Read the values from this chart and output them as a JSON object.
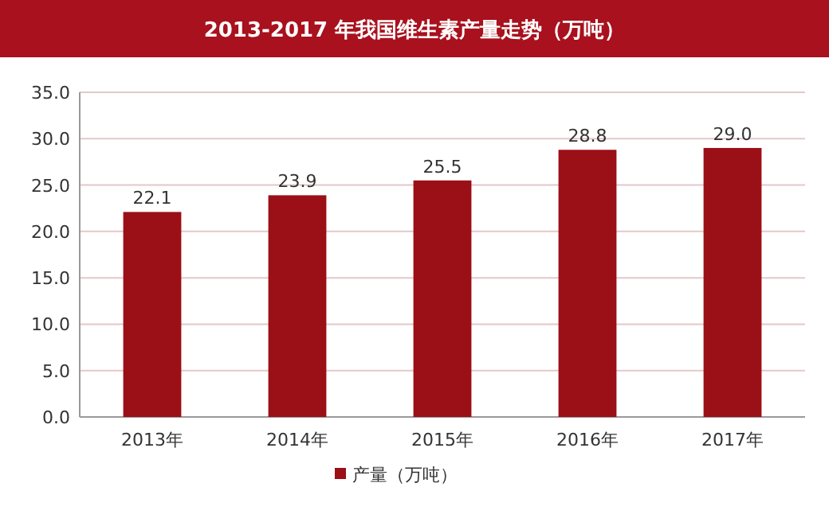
{
  "chart_data": {
    "type": "bar",
    "title": "2013-2017 年我国维生素产量走势（万吨）",
    "categories": [
      "2013年",
      "2014年",
      "2015年",
      "2016年",
      "2017年"
    ],
    "series": [
      {
        "name": "产量（万吨）",
        "color": "#9b0f17",
        "values": [
          22.1,
          23.9,
          25.5,
          28.8,
          29.0
        ],
        "value_labels": [
          "22.1",
          "23.9",
          "25.5",
          "28.8",
          "29.0"
        ]
      }
    ],
    "ylim": [
      0,
      35
    ],
    "yticks": [
      {
        "value": 0,
        "label": "0.0"
      },
      {
        "value": 5,
        "label": "5.0"
      },
      {
        "value": 10,
        "label": "10.0"
      },
      {
        "value": 15,
        "label": "15.0"
      },
      {
        "value": 20,
        "label": "20.0"
      },
      {
        "value": 25,
        "label": "25.0"
      },
      {
        "value": 30,
        "label": "30.0"
      },
      {
        "value": 35,
        "label": "35.0"
      }
    ],
    "grid": "y",
    "legend": "bottom"
  }
}
